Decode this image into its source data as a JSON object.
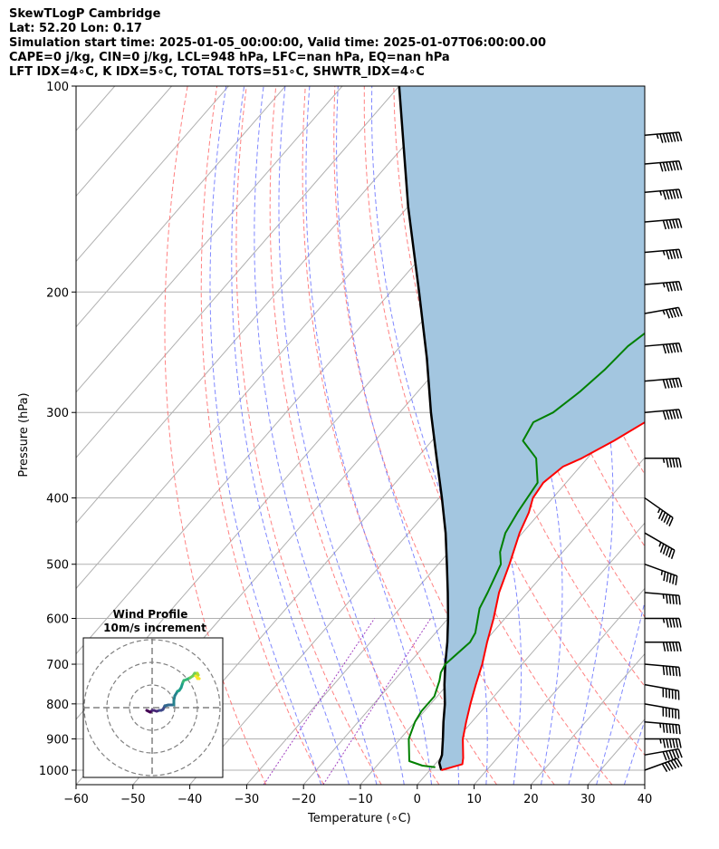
{
  "header": {
    "line1": "SkewTLogP Cambridge",
    "line2": "Lat: 52.20   Lon: 0.17",
    "line3": "Simulation start time: 2025-01-05_00:00:00, Valid time: 2025-01-07T06:00:00.00",
    "line4": "CAPE=0 j/kg, CIN=0 j/kg, LCL=948 hPa, LFC=nan hPa, EQ=nan hPa",
    "line5": "LFT IDX=4∘C, K IDX=5∘C, TOTAL TOTS=51∘C, SHWTR_IDX=4∘C"
  },
  "chart_data": {
    "type": "line",
    "subtype": "skew-t log-p",
    "xlabel": "Temperature (∘C)",
    "ylabel": "Pressure (hPa)",
    "xlim": [
      -60,
      40
    ],
    "ylim": [
      1050,
      100
    ],
    "x_ticks": [
      "−60",
      "−50",
      "−40",
      "−30",
      "−20",
      "−10",
      "0",
      "10",
      "20",
      "30",
      "40"
    ],
    "y_ticks": [
      "100",
      "200",
      "300",
      "400",
      "500",
      "600",
      "700",
      "800",
      "900",
      "1000"
    ],
    "y_tick_values": [
      100,
      200,
      300,
      400,
      500,
      600,
      700,
      800,
      900,
      1000
    ],
    "series": [
      {
        "role": "temperature",
        "color": "#ff0000",
        "points": [
          [
            1000,
            2.0
          ],
          [
            980,
            4.8
          ],
          [
            960,
            4.0
          ],
          [
            900,
            1.0
          ],
          [
            850,
            -1.0
          ],
          [
            800,
            -3.0
          ],
          [
            750,
            -5.0
          ],
          [
            700,
            -7.0
          ],
          [
            650,
            -9.5
          ],
          [
            600,
            -12.0
          ],
          [
            550,
            -15.0
          ],
          [
            500,
            -17.5
          ],
          [
            450,
            -20.5
          ],
          [
            420,
            -22.0
          ],
          [
            400,
            -23.5
          ],
          [
            380,
            -24.0
          ],
          [
            360,
            -23.0
          ],
          [
            350,
            -21.0
          ],
          [
            330,
            -18.0
          ],
          [
            300,
            -14.0
          ],
          [
            280,
            -10.0
          ],
          [
            250,
            -7.0
          ],
          [
            220,
            -5.0
          ],
          [
            200,
            -3.5
          ],
          [
            180,
            -1.5
          ],
          [
            160,
            1.0
          ],
          [
            140,
            5.0
          ],
          [
            120,
            10.0
          ],
          [
            110,
            12.0
          ],
          [
            100,
            14.0
          ]
        ]
      },
      {
        "role": "dewpoint",
        "color": "#008000",
        "points": [
          [
            990,
            0.5
          ],
          [
            985,
            -2.0
          ],
          [
            970,
            -5.0
          ],
          [
            900,
            -8.5
          ],
          [
            850,
            -10.0
          ],
          [
            820,
            -10.5
          ],
          [
            780,
            -10.5
          ],
          [
            740,
            -12.0
          ],
          [
            720,
            -13.0
          ],
          [
            700,
            -13.5
          ],
          [
            650,
            -12.5
          ],
          [
            630,
            -13.0
          ],
          [
            580,
            -16.0
          ],
          [
            550,
            -17.0
          ],
          [
            500,
            -19.0
          ],
          [
            480,
            -21.0
          ],
          [
            450,
            -23.0
          ],
          [
            420,
            -24.0
          ],
          [
            380,
            -25.0
          ],
          [
            350,
            -29.0
          ],
          [
            330,
            -34.0
          ],
          [
            310,
            -35.0
          ],
          [
            300,
            -33.0
          ],
          [
            280,
            -31.5
          ],
          [
            260,
            -30.5
          ],
          [
            240,
            -30.0
          ],
          [
            220,
            -28.0
          ],
          [
            200,
            -26.5
          ],
          [
            180,
            -24.5
          ],
          [
            160,
            -22.0
          ],
          [
            140,
            -19.0
          ],
          [
            130,
            -16.0
          ],
          [
            120,
            -14.0
          ],
          [
            110,
            -11.5
          ],
          [
            100,
            -9.0
          ]
        ]
      },
      {
        "role": "parcel",
        "color": "#000000",
        "points": [
          [
            1000,
            2.0
          ],
          [
            975,
            0.5
          ],
          [
            950,
            -0.2
          ],
          [
            900,
            -2.5
          ],
          [
            850,
            -5.0
          ],
          [
            800,
            -7.5
          ],
          [
            750,
            -10.5
          ],
          [
            700,
            -13.5
          ],
          [
            650,
            -16.5
          ],
          [
            600,
            -20.0
          ],
          [
            550,
            -24.0
          ],
          [
            500,
            -28.5
          ],
          [
            450,
            -33.5
          ],
          [
            400,
            -39.5
          ],
          [
            350,
            -46.5
          ],
          [
            300,
            -54.5
          ],
          [
            250,
            -63.5
          ],
          [
            200,
            -75.0
          ],
          [
            150,
            -90.0
          ],
          [
            100,
            -110.0
          ]
        ]
      }
    ],
    "wind_barbs": [
      {
        "p": 1000,
        "direction": 250,
        "speed": 60
      },
      {
        "p": 950,
        "direction": 260,
        "speed": 60
      },
      {
        "p": 900,
        "direction": 270,
        "speed": 65
      },
      {
        "p": 850,
        "direction": 275,
        "speed": 65
      },
      {
        "p": 800,
        "direction": 280,
        "speed": 60
      },
      {
        "p": 750,
        "direction": 280,
        "speed": 60
      },
      {
        "p": 700,
        "direction": 275,
        "speed": 60
      },
      {
        "p": 650,
        "direction": 270,
        "speed": 60
      },
      {
        "p": 600,
        "direction": 270,
        "speed": 55
      },
      {
        "p": 550,
        "direction": 275,
        "speed": 55
      },
      {
        "p": 500,
        "direction": 290,
        "speed": 55
      },
      {
        "p": 450,
        "direction": 300,
        "speed": 55
      },
      {
        "p": 400,
        "direction": 305,
        "speed": 55
      },
      {
        "p": 350,
        "direction": 270,
        "speed": 55
      },
      {
        "p": 300,
        "direction": 265,
        "speed": 60
      },
      {
        "p": 270,
        "direction": 265,
        "speed": 60
      },
      {
        "p": 240,
        "direction": 265,
        "speed": 60
      },
      {
        "p": 215,
        "direction": 260,
        "speed": 55
      },
      {
        "p": 195,
        "direction": 265,
        "speed": 55
      },
      {
        "p": 175,
        "direction": 265,
        "speed": 55
      },
      {
        "p": 158,
        "direction": 265,
        "speed": 60
      },
      {
        "p": 143,
        "direction": 265,
        "speed": 65
      },
      {
        "p": 130,
        "direction": 265,
        "speed": 70
      },
      {
        "p": 118,
        "direction": 265,
        "speed": 75
      }
    ],
    "colors": {
      "cape_fill": "#a3c6e0",
      "dry_adiabat": "#ff6b6b",
      "moist_adiabat": "#6a73ff",
      "grid": "#b0b0b0",
      "mixing_ratio": "#a040c0"
    },
    "inset": {
      "title_line1": "Wind Profile",
      "title_line2": "10m/s increment",
      "hodograph": [
        [
          -6,
          -3
        ],
        [
          -4,
          -4
        ],
        [
          -2,
          -5
        ],
        [
          0,
          -3
        ],
        [
          2,
          -3
        ],
        [
          5,
          -4
        ],
        [
          8,
          -3
        ],
        [
          10,
          -3
        ],
        [
          12,
          -2
        ],
        [
          14,
          2
        ],
        [
          18,
          3
        ],
        [
          22,
          3
        ],
        [
          24,
          3
        ],
        [
          24,
          8
        ],
        [
          25,
          13
        ],
        [
          28,
          18
        ],
        [
          30,
          19
        ],
        [
          32,
          22
        ],
        [
          34,
          28
        ],
        [
          35,
          30
        ],
        [
          38,
          31
        ],
        [
          42,
          33
        ],
        [
          45,
          35
        ],
        [
          47,
          38
        ],
        [
          50,
          38
        ],
        [
          51,
          36
        ],
        [
          50,
          35
        ],
        [
          48,
          35
        ],
        [
          50,
          33
        ],
        [
          52,
          32
        ],
        [
          50,
          32
        ]
      ]
    }
  }
}
